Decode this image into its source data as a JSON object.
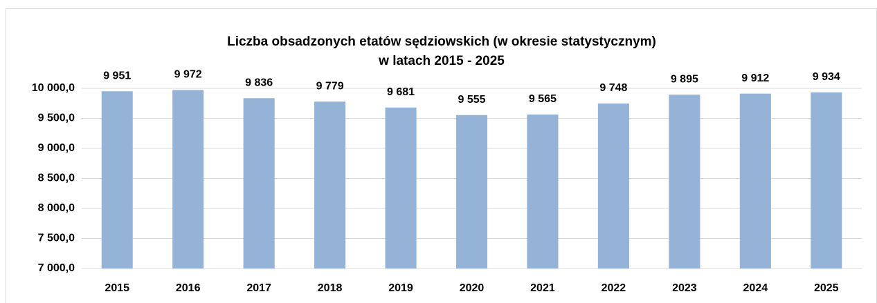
{
  "chart_data": {
    "type": "bar",
    "title": [
      "Liczba obsadzonych etatów sędziowskich (w okresie statystycznym)",
      "w latach 2015 - 2025"
    ],
    "categories": [
      "2015",
      "2016",
      "2017",
      "2018",
      "2019",
      "2020",
      "2021",
      "2022",
      "2023",
      "2024",
      "2025"
    ],
    "values": [
      9951,
      9972,
      9836,
      9779,
      9681,
      9555,
      9565,
      9748,
      9895,
      9912,
      9934
    ],
    "value_labels": [
      "9 951",
      "9 972",
      "9 836",
      "9 779",
      "9 681",
      "9 555",
      "9 565",
      "9 748",
      "9 895",
      "9 912",
      "9 934"
    ],
    "color": "#95b3d7",
    "ylim": [
      7000,
      10000
    ],
    "yticks": [
      {
        "value": 7000,
        "label": "7 000,0"
      },
      {
        "value": 7500,
        "label": "7 500,0"
      },
      {
        "value": 8000,
        "label": "8 000,0"
      },
      {
        "value": 8500,
        "label": "8 500,0"
      },
      {
        "value": 9000,
        "label": "9 000,0"
      },
      {
        "value": 9500,
        "label": "9 500,0"
      },
      {
        "value": 10000,
        "label": "10 000,0"
      }
    ],
    "grid": true
  }
}
